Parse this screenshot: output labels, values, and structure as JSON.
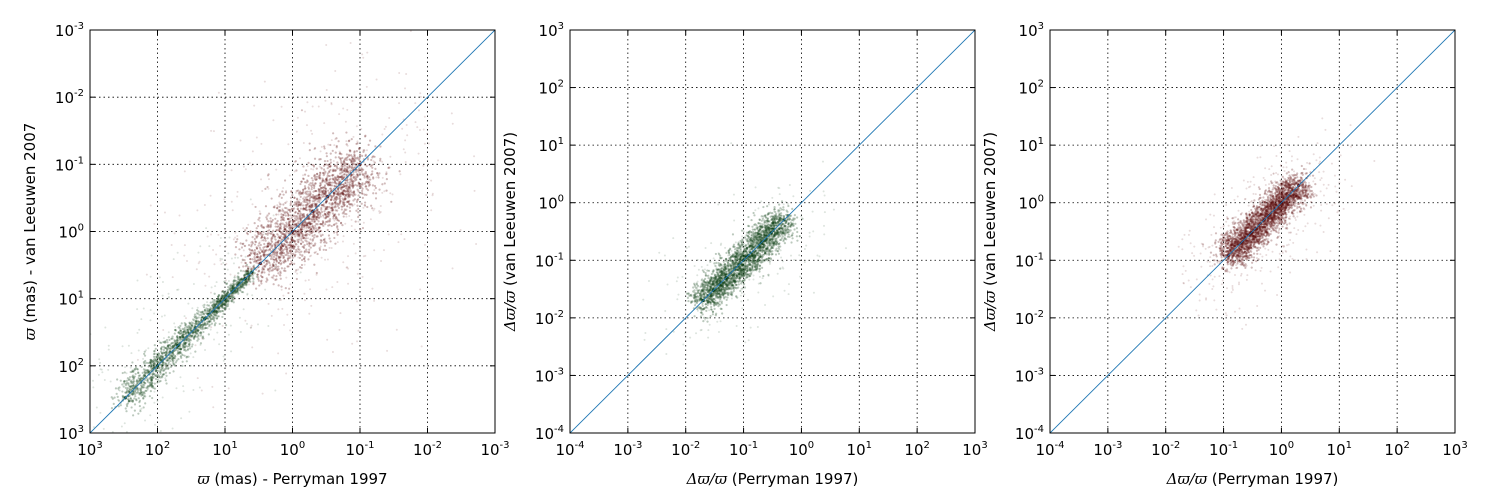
{
  "chart_data": [
    {
      "type": "scatter",
      "xlabel_symbol": "ϖ",
      "xlabel_text": " (mas) - Perryman 1997",
      "ylabel_symbol": "ϖ",
      "ylabel_text": " (mas) - van Leeuwen 2007",
      "xscale": "log",
      "yscale": "log",
      "xlim": [
        1000,
        0.001
      ],
      "ylim": [
        1000,
        0.001
      ],
      "x_ticks": [
        "10^3",
        "10^2",
        "10^1",
        "10^0",
        "10^-1",
        "10^-2",
        "10^-3"
      ],
      "y_ticks": [
        "10^3",
        "10^2",
        "10^1",
        "10^0",
        "10^-1",
        "10^-2",
        "10^-3"
      ],
      "grid": true,
      "reference_line": "y = x",
      "colors": {
        "reference_line": "#1f77b4",
        "green": "#0b3d12",
        "red": "#5a0a0a"
      },
      "series": [
        {
          "color": "green",
          "points": [
            [
              300,
              300
            ],
            [
              100,
              100
            ],
            [
              50,
              50
            ],
            [
              20,
              20
            ],
            [
              10,
              10
            ],
            [
              5,
              5
            ],
            [
              4,
              4
            ]
          ]
        },
        {
          "color": "red",
          "points": [
            [
              3,
              3
            ],
            [
              1,
              1
            ],
            [
              0.5,
              0.5
            ],
            [
              0.3,
              0.3
            ],
            [
              0.1,
              0.1
            ]
          ]
        }
      ]
    },
    {
      "type": "scatter",
      "xlabel_symbol": "Δϖ/ϖ",
      "xlabel_text": " (Perryman 1997)",
      "ylabel_symbol": "Δϖ/ϖ",
      "ylabel_text": " (van Leeuwen 2007)",
      "xscale": "log",
      "yscale": "log",
      "xlim": [
        0.0001,
        1000
      ],
      "ylim": [
        0.0001,
        1000
      ],
      "x_ticks": [
        "10^-4",
        "10^-3",
        "10^-2",
        "10^-1",
        "10^0",
        "10^1",
        "10^2",
        "10^3"
      ],
      "y_ticks": [
        "10^-4",
        "10^-3",
        "10^-2",
        "10^-1",
        "10^0",
        "10^1",
        "10^2",
        "10^3"
      ],
      "grid": true,
      "reference_line": "y = x",
      "colors": {
        "reference_line": "#1f77b4",
        "green": "#0b3d12"
      },
      "series": [
        {
          "color": "green",
          "points": [
            [
              0.02,
              0.02
            ],
            [
              0.03,
              0.03
            ],
            [
              0.05,
              0.05
            ],
            [
              0.1,
              0.1
            ],
            [
              0.2,
              0.2
            ],
            [
              0.3,
              0.3
            ],
            [
              0.5,
              0.5
            ]
          ]
        }
      ]
    },
    {
      "type": "scatter",
      "xlabel_symbol": "Δϖ/ϖ",
      "xlabel_text": " (Perryman 1997)",
      "ylabel_symbol": "Δϖ/ϖ",
      "ylabel_text": " (van Leeuwen 2007)",
      "xscale": "log",
      "yscale": "log",
      "xlim": [
        0.0001,
        1000
      ],
      "ylim": [
        0.0001,
        1000
      ],
      "x_ticks": [
        "10^-4",
        "10^-3",
        "10^-2",
        "10^-1",
        "10^0",
        "10^1",
        "10^2",
        "10^3"
      ],
      "y_ticks": [
        "10^-4",
        "10^-3",
        "10^-2",
        "10^-1",
        "10^0",
        "10^1",
        "10^2",
        "10^3"
      ],
      "grid": true,
      "reference_line": "y = x",
      "colors": {
        "reference_line": "#1f77b4",
        "red": "#5a0a0a"
      },
      "series": [
        {
          "color": "red",
          "points": [
            [
              0.12,
              0.12
            ],
            [
              0.2,
              0.2
            ],
            [
              0.3,
              0.3
            ],
            [
              0.5,
              0.5
            ],
            [
              1,
              1
            ],
            [
              2,
              2
            ]
          ]
        }
      ]
    }
  ]
}
